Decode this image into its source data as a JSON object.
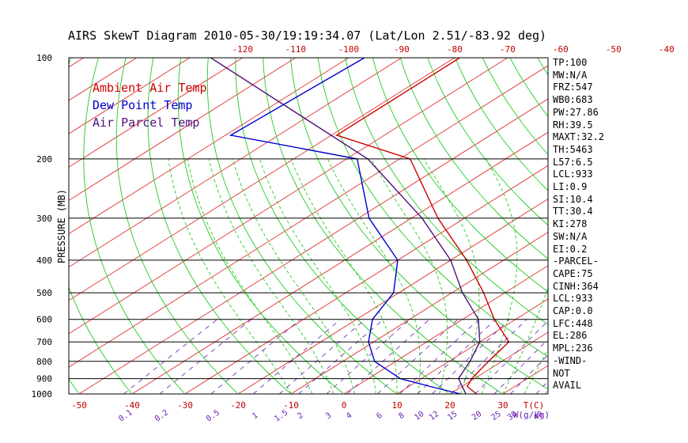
{
  "chart_data": {
    "type": "skewt",
    "title": "AIRS SkewT Diagram 2010-05-30/19:19:34.07 (Lat/Lon 2.51/-83.92 deg)",
    "ylabel": "PRESSURE (MB)",
    "xlabel_bottom_temp": "T(C)",
    "xlabel_bottom_mix": "W(g/kg)",
    "pressure_ticks": [
      100,
      200,
      300,
      400,
      500,
      600,
      700,
      800,
      900,
      1000
    ],
    "temp_ticks_top": [
      -120,
      -110,
      -100,
      -90,
      -80,
      -70,
      -60,
      -50,
      -40
    ],
    "temp_ticks_bottom": [
      -50,
      -40,
      -30,
      -20,
      -10,
      0,
      10,
      20,
      30
    ],
    "mixing_ratio_labels": [
      "0.1",
      "0.2",
      "0.5",
      "1",
      "1.5",
      "2",
      "3",
      "4",
      "6",
      "8",
      "10",
      "12",
      "15",
      "20",
      "25",
      "30",
      "40"
    ],
    "legend": [
      {
        "name": "Ambient Air Temp",
        "color": "#d00000"
      },
      {
        "name": "Dew Point Temp",
        "color": "#0000d0"
      },
      {
        "name": "Air Parcel Temp",
        "color": "#50107a"
      }
    ],
    "series": [
      {
        "name": "Ambient Air Temp",
        "color": "#d00000",
        "points": [
          [
            100,
            -79
          ],
          [
            170,
            -79
          ],
          [
            200,
            -58
          ],
          [
            300,
            -35
          ],
          [
            400,
            -17
          ],
          [
            500,
            -4
          ],
          [
            600,
            6
          ],
          [
            700,
            15.5
          ],
          [
            800,
            17.5
          ],
          [
            900,
            19.5
          ],
          [
            950,
            21
          ],
          [
            1000,
            25
          ]
        ]
      },
      {
        "name": "Dew Point Temp",
        "color": "#0000d0",
        "points": [
          [
            100,
            -97
          ],
          [
            170,
            -99
          ],
          [
            200,
            -68
          ],
          [
            300,
            -48
          ],
          [
            400,
            -30
          ],
          [
            500,
            -21
          ],
          [
            600,
            -17
          ],
          [
            700,
            -11
          ],
          [
            800,
            -4
          ],
          [
            900,
            6
          ],
          [
            950,
            14
          ],
          [
            1000,
            22
          ]
        ]
      },
      {
        "name": "Air Parcel Temp",
        "color": "#50107a",
        "points": [
          [
            100,
            -126
          ],
          [
            200,
            -66
          ],
          [
            300,
            -38
          ],
          [
            400,
            -20
          ],
          [
            500,
            -8
          ],
          [
            600,
            3
          ],
          [
            700,
            10
          ],
          [
            800,
            14
          ],
          [
            900,
            17
          ],
          [
            1000,
            23
          ]
        ]
      }
    ],
    "mixing_ratio_values": [
      0.1,
      0.2,
      0.5,
      1,
      1.5,
      2,
      3,
      4,
      6,
      8,
      10,
      12,
      15,
      20,
      25,
      30,
      40
    ]
  },
  "indices": [
    "TP:100",
    "MW:N/A",
    "FRZ:547",
    "WB0:683",
    "PW:27.86",
    "RH:39.5",
    "MAXT:32.2",
    "TH:5463",
    "L57:6.5",
    "LCL:933",
    "LI:0.9",
    "SI:10.4",
    "TT:30.4",
    "KI:278",
    "SW:N/A",
    "EI:0.2",
    "-PARCEL-",
    "CAPE:75",
    "CINH:364",
    "LCL:933",
    "CAP:0.0",
    "LFC:448",
    "EL:286",
    "MPL:236",
    "-WIND-",
    "NOT",
    "AVAIL"
  ]
}
